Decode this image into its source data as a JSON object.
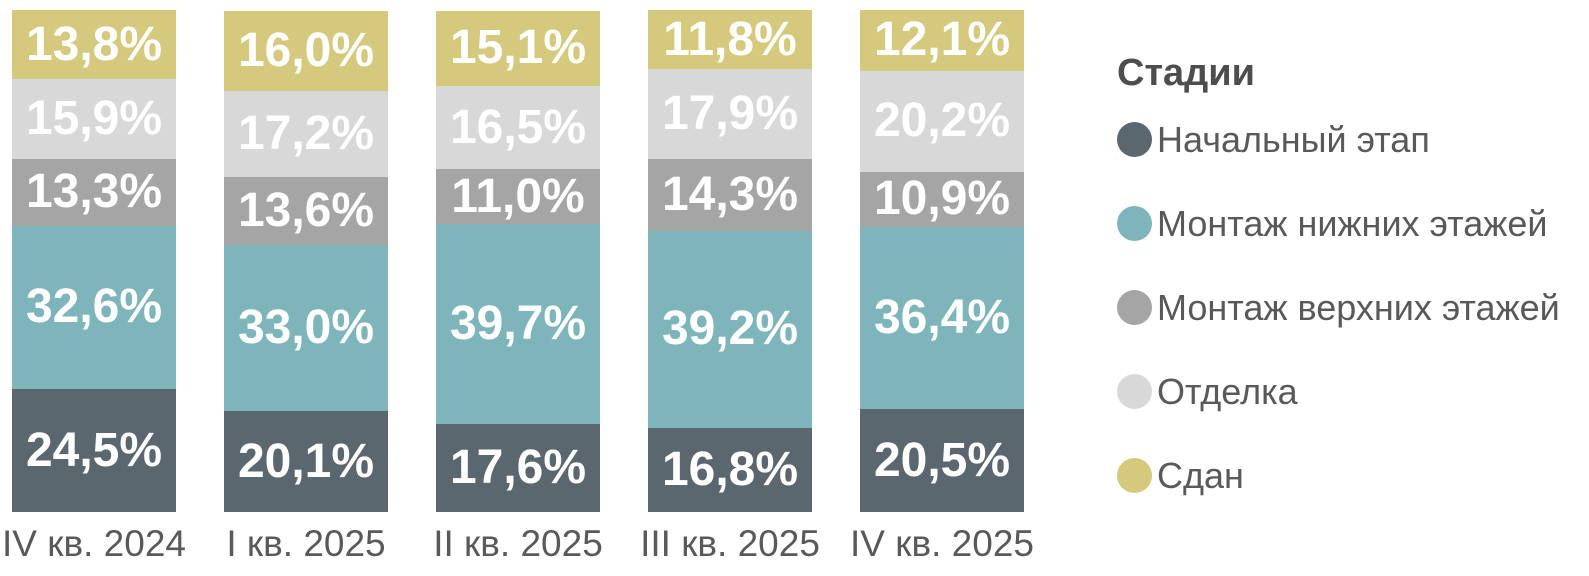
{
  "chart_data": {
    "type": "bar",
    "stacked": true,
    "orientation": "vertical",
    "title": "",
    "xlabel": "",
    "ylabel": "",
    "ylim": [
      0,
      100
    ],
    "grid": false,
    "axis_text_color": "#595959",
    "value_label_color": "#ffffff",
    "value_label_format": "decimal-comma-percent",
    "categories": [
      "IV кв. 2024",
      "I кв. 2025",
      "II кв. 2025",
      "III кв. 2025",
      "IV кв. 2025"
    ],
    "series": [
      {
        "name": "Начальный этап",
        "color": "#5a676e",
        "values": [
          24.5,
          20.1,
          17.6,
          16.8,
          20.5
        ]
      },
      {
        "name": "Монтаж нижних этажей",
        "color": "#7db5bb",
        "values": [
          32.6,
          33.0,
          39.7,
          39.2,
          36.4
        ]
      },
      {
        "name": "Монтаж верхних этажей",
        "color": "#a5a5a5",
        "values": [
          13.3,
          13.6,
          11.0,
          14.3,
          10.9
        ]
      },
      {
        "name": "Отделка",
        "color": "#d8d8d9",
        "values": [
          15.9,
          17.2,
          16.5,
          17.9,
          20.2
        ]
      },
      {
        "name": "Сдан",
        "color": "#d5c97d",
        "values": [
          13.8,
          16.0,
          15.1,
          11.8,
          12.1
        ]
      }
    ],
    "legend": {
      "title": "Стадии",
      "position": "right"
    }
  }
}
